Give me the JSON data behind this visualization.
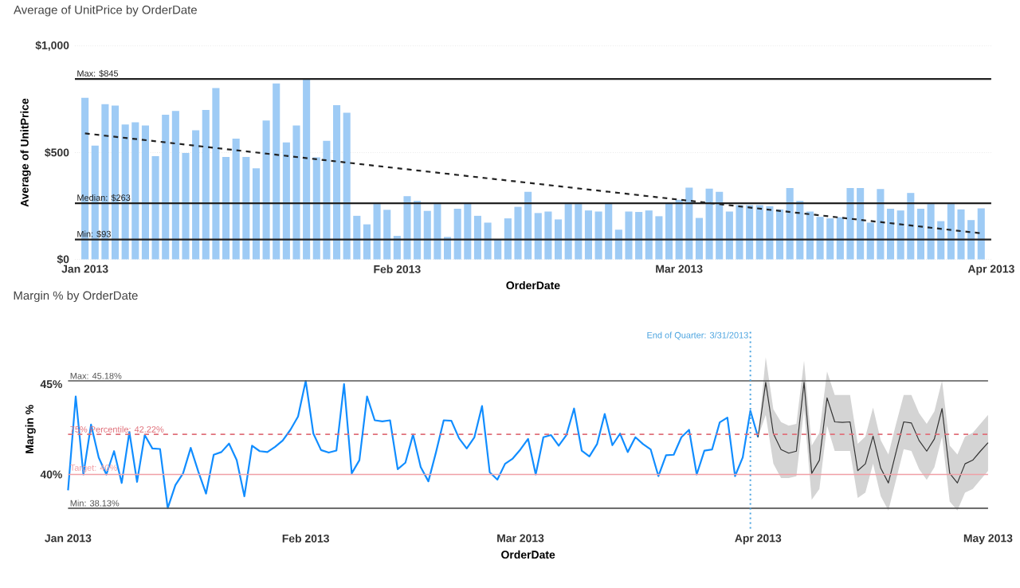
{
  "chart_data": [
    {
      "type": "bar",
      "title": "Average of UnitPrice by OrderDate",
      "xlabel": "OrderDate",
      "ylabel": "Average of UnitPrice",
      "xlim": [
        "2012-12-31",
        "2013-04-01"
      ],
      "ylim": [
        0,
        1000
      ],
      "xticks": [
        {
          "value": "2013-01-01",
          "label": "Jan 2013"
        },
        {
          "value": "2013-02-01",
          "label": "Feb 2013"
        },
        {
          "value": "2013-03-01",
          "label": "Mar 2013"
        },
        {
          "value": "2013-04-01",
          "label": "Apr 2013"
        }
      ],
      "yticks": [
        {
          "value": 0,
          "label": "$0"
        },
        {
          "value": 500,
          "label": "$500"
        },
        {
          "value": 1000,
          "label": "$1,000"
        }
      ],
      "grid": "y",
      "series": [
        {
          "type": "bar",
          "color": "#9ecbf5",
          "x": [
            "2013-01-01",
            "2013-01-02",
            "2013-01-03",
            "2013-01-04",
            "2013-01-05",
            "2013-01-06",
            "2013-01-07",
            "2013-01-08",
            "2013-01-09",
            "2013-01-10",
            "2013-01-11",
            "2013-01-12",
            "2013-01-13",
            "2013-01-14",
            "2013-01-15",
            "2013-01-16",
            "2013-01-17",
            "2013-01-18",
            "2013-01-19",
            "2013-01-20",
            "2013-01-21",
            "2013-01-22",
            "2013-01-23",
            "2013-01-24",
            "2013-01-25",
            "2013-01-26",
            "2013-01-27",
            "2013-01-28",
            "2013-01-29",
            "2013-01-30",
            "2013-01-31",
            "2013-02-01",
            "2013-02-02",
            "2013-02-03",
            "2013-02-04",
            "2013-02-05",
            "2013-02-06",
            "2013-02-07",
            "2013-02-08",
            "2013-02-09",
            "2013-02-10",
            "2013-02-11",
            "2013-02-12",
            "2013-02-13",
            "2013-02-14",
            "2013-02-15",
            "2013-02-16",
            "2013-02-17",
            "2013-02-18",
            "2013-02-19",
            "2013-02-20",
            "2013-02-21",
            "2013-02-22",
            "2013-02-23",
            "2013-02-24",
            "2013-02-25",
            "2013-02-26",
            "2013-02-27",
            "2013-02-28",
            "2013-03-01",
            "2013-03-02",
            "2013-03-03",
            "2013-03-04",
            "2013-03-05",
            "2013-03-06",
            "2013-03-07",
            "2013-03-08",
            "2013-03-09",
            "2013-03-10",
            "2013-03-11",
            "2013-03-12",
            "2013-03-13",
            "2013-03-14",
            "2013-03-15",
            "2013-03-16",
            "2013-03-17",
            "2013-03-18",
            "2013-03-19",
            "2013-03-20",
            "2013-03-21",
            "2013-03-22",
            "2013-03-23",
            "2013-03-24",
            "2013-03-25",
            "2013-03-26",
            "2013-03-27",
            "2013-03-28",
            "2013-03-29",
            "2013-03-30",
            "2013-03-31"
          ],
          "values": [
            757,
            533,
            727,
            720,
            632,
            642,
            627,
            483,
            677,
            695,
            498,
            605,
            700,
            802,
            480,
            565,
            480,
            426,
            650,
            824,
            548,
            627,
            845,
            478,
            555,
            722,
            687,
            204,
            164,
            259,
            232,
            110,
            296,
            274,
            227,
            259,
            105,
            237,
            264,
            204,
            172,
            93,
            192,
            246,
            316,
            217,
            224,
            187,
            259,
            259,
            229,
            224,
            261,
            139,
            224,
            222,
            229,
            202,
            261,
            279,
            336,
            194,
            331,
            316,
            224,
            254,
            254,
            254,
            249,
            234,
            334,
            274,
            224,
            199,
            192,
            197,
            334,
            334,
            172,
            329,
            237,
            229,
            311,
            237,
            259,
            179,
            259,
            234,
            184,
            239
          ]
        },
        {
          "type": "line",
          "color": "#222222",
          "line_style": "dashed",
          "x": [
            "2013-01-01",
            "2013-03-31"
          ],
          "values": [
            590,
            122
          ]
        }
      ],
      "ref_lines": [
        {
          "axis": "y",
          "value": 845,
          "label": "Max: $845",
          "color": "#222222"
        },
        {
          "axis": "y",
          "value": 263,
          "label": "Median: $263",
          "color": "#222222"
        },
        {
          "axis": "y",
          "value": 93,
          "label": "Min: $93",
          "color": "#222222"
        }
      ]
    },
    {
      "type": "line",
      "title": "Margin % by OrderDate",
      "xlabel": "OrderDate",
      "ylabel": "Margin %",
      "xlim": [
        "2013-01-01",
        "2013-05-01"
      ],
      "ylim": [
        37,
        48
      ],
      "xticks": [
        {
          "value": "2013-01-01",
          "label": "Jan 2013"
        },
        {
          "value": "2013-02-01",
          "label": "Feb 2013"
        },
        {
          "value": "2013-03-01",
          "label": "Mar 2013"
        },
        {
          "value": "2013-04-01",
          "label": "Apr 2013"
        },
        {
          "value": "2013-05-01",
          "label": "May 2013"
        }
      ],
      "yticks": [
        {
          "value": 40,
          "label": "40%"
        },
        {
          "value": 45,
          "label": "45%"
        }
      ],
      "series": [
        {
          "color": "#118dff",
          "x": [
            "2013-01-01",
            "2013-01-02",
            "2013-01-03",
            "2013-01-04",
            "2013-01-05",
            "2013-01-06",
            "2013-01-07",
            "2013-01-08",
            "2013-01-09",
            "2013-01-10",
            "2013-01-11",
            "2013-01-12",
            "2013-01-13",
            "2013-01-14",
            "2013-01-15",
            "2013-01-16",
            "2013-01-17",
            "2013-01-18",
            "2013-01-19",
            "2013-01-20",
            "2013-01-21",
            "2013-01-22",
            "2013-01-23",
            "2013-01-24",
            "2013-01-25",
            "2013-01-26",
            "2013-01-27",
            "2013-01-28",
            "2013-01-29",
            "2013-01-30",
            "2013-01-31",
            "2013-02-01",
            "2013-02-02",
            "2013-02-03",
            "2013-02-04",
            "2013-02-05",
            "2013-02-06",
            "2013-02-07",
            "2013-02-08",
            "2013-02-09",
            "2013-02-10",
            "2013-02-11",
            "2013-02-12",
            "2013-02-13",
            "2013-02-14",
            "2013-02-15",
            "2013-02-16",
            "2013-02-17",
            "2013-02-18",
            "2013-02-19",
            "2013-02-20",
            "2013-02-21",
            "2013-02-22",
            "2013-02-23",
            "2013-02-24",
            "2013-02-25",
            "2013-02-26",
            "2013-02-27",
            "2013-02-28",
            "2013-03-01",
            "2013-03-02",
            "2013-03-03",
            "2013-03-04",
            "2013-03-05",
            "2013-03-06",
            "2013-03-07",
            "2013-03-08",
            "2013-03-09",
            "2013-03-10",
            "2013-03-11",
            "2013-03-12",
            "2013-03-13",
            "2013-03-14",
            "2013-03-15",
            "2013-03-16",
            "2013-03-17",
            "2013-03-18",
            "2013-03-19",
            "2013-03-20",
            "2013-03-21",
            "2013-03-22",
            "2013-03-23",
            "2013-03-24",
            "2013-03-25",
            "2013-03-26",
            "2013-03-27",
            "2013-03-28",
            "2013-03-29",
            "2013-03-30",
            "2013-03-31",
            "2013-04-01"
          ],
          "values": [
            39.12,
            44.32,
            40.0,
            42.76,
            40.94,
            40.0,
            41.29,
            39.53,
            42.35,
            39.59,
            42.18,
            41.44,
            41.41,
            38.13,
            39.41,
            40.06,
            41.47,
            40.15,
            38.94,
            41.09,
            41.24,
            41.71,
            40.79,
            38.79,
            41.59,
            41.29,
            41.24,
            41.53,
            41.88,
            42.47,
            43.21,
            45.18,
            42.26,
            41.35,
            41.21,
            41.32,
            45.0,
            40.06,
            40.79,
            44.32,
            43.0,
            42.94,
            43.0,
            40.29,
            40.65,
            42.21,
            40.41,
            39.62,
            41.24,
            43.0,
            42.97,
            42.0,
            41.44,
            42.06,
            43.79,
            40.12,
            39.71,
            40.59,
            40.88,
            41.38,
            41.97,
            40.0,
            42.06,
            42.18,
            41.59,
            42.18,
            43.65,
            41.32,
            41.0,
            41.68,
            43.35,
            41.62,
            42.26,
            41.24,
            42.06,
            41.68,
            41.38,
            39.91,
            41.06,
            41.09,
            42.06,
            42.47,
            40.0,
            41.32,
            41.38,
            42.88,
            43.15,
            39.91,
            40.94,
            43.53,
            42.06
          ]
        },
        {
          "color": "#333333",
          "x": [
            "2013-04-01",
            "2013-04-02",
            "2013-04-03",
            "2013-04-04",
            "2013-04-05",
            "2013-04-06",
            "2013-04-07",
            "2013-04-08",
            "2013-04-09",
            "2013-04-10",
            "2013-04-11",
            "2013-04-12",
            "2013-04-13",
            "2013-04-14",
            "2013-04-15",
            "2013-04-16",
            "2013-04-17",
            "2013-04-18",
            "2013-04-19",
            "2013-04-20",
            "2013-04-21",
            "2013-04-22",
            "2013-04-23",
            "2013-04-24",
            "2013-04-25",
            "2013-04-26",
            "2013-04-27",
            "2013-04-28",
            "2013-04-29",
            "2013-04-30",
            "2013-05-01"
          ],
          "values": [
            42.06,
            45.1,
            42.26,
            41.38,
            41.18,
            41.29,
            45.1,
            40.06,
            40.79,
            44.24,
            42.91,
            42.88,
            42.91,
            40.21,
            40.59,
            42.12,
            40.35,
            39.53,
            41.24,
            42.91,
            42.85,
            41.88,
            41.29,
            41.97,
            43.65,
            40.06,
            39.53,
            40.59,
            40.79,
            41.29,
            41.76
          ],
          "lower": [
            42.06,
            43.3,
            40.6,
            39.8,
            39.8,
            39.9,
            43.6,
            38.6,
            39.2,
            42.7,
            41.3,
            41.3,
            41.3,
            38.7,
            39.0,
            40.6,
            38.8,
            38.0,
            39.7,
            41.4,
            41.3,
            40.3,
            39.7,
            40.4,
            42.1,
            38.5,
            38.0,
            39.0,
            39.2,
            39.7,
            40.2
          ],
          "upper": [
            42.06,
            46.5,
            43.6,
            42.9,
            42.7,
            42.8,
            46.3,
            41.6,
            42.3,
            45.7,
            44.4,
            44.4,
            44.4,
            41.7,
            42.1,
            43.7,
            41.9,
            41.1,
            42.8,
            44.4,
            44.4,
            43.4,
            42.8,
            43.5,
            45.2,
            41.6,
            41.1,
            42.1,
            42.3,
            42.8,
            43.3
          ]
        }
      ],
      "ref_lines": [
        {
          "axis": "y",
          "value": 45.18,
          "label": "Max: 45.18%",
          "color": "#555555",
          "line_style": "solid"
        },
        {
          "axis": "y",
          "value": 42.22,
          "label": "75% Percentile: 42.22%",
          "color": "#e0707a",
          "line_style": "dashed"
        },
        {
          "axis": "y",
          "value": 40,
          "label": "Target: 40%",
          "color": "#f0a0a6",
          "line_style": "solid"
        },
        {
          "axis": "y",
          "value": 38.13,
          "label": "Min: 38.13%",
          "color": "#555555",
          "line_style": "solid"
        },
        {
          "axis": "x",
          "value": "2013-03-31",
          "label": "End of Quarter: 3/31/2013",
          "color": "#4aa3df",
          "line_style": "dotted"
        }
      ]
    }
  ]
}
